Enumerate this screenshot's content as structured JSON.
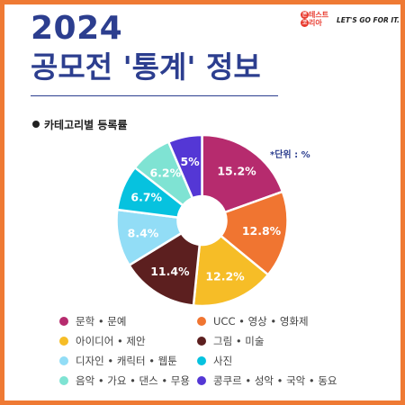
{
  "header": {
    "year": "2024",
    "title": "공모전 '통계' 정보",
    "logo_line1_a": "콘",
    "logo_line1_b": "테스트",
    "logo_line2_a": "코",
    "logo_line2_b": "리아",
    "slogan": "LET'S GO FOR IT."
  },
  "section_title": "카테고리별 등록률",
  "unit_note": "*단위 : %",
  "chart_data": {
    "type": "pie",
    "title": "카테고리별 등록률",
    "donut": true,
    "slices": [
      {
        "name": "문학 • 문예",
        "value": 15.2,
        "label": "15.2%",
        "color": "#b62b6e"
      },
      {
        "name": "UCC • 영상 • 영화제",
        "value": 12.8,
        "label": "12.8%",
        "color": "#f07531"
      },
      {
        "name": "아이디어 • 제안",
        "value": 12.2,
        "label": "12.2%",
        "color": "#f6bd27"
      },
      {
        "name": "그림 • 미술",
        "value": 11.4,
        "label": "11.4%",
        "color": "#5c1f1f"
      },
      {
        "name": "디자인 • 캐릭터 • 웹툰",
        "value": 8.4,
        "label": "8.4%",
        "color": "#92ddf6"
      },
      {
        "name": "사진",
        "value": 6.7,
        "label": "6.7%",
        "color": "#06c2df"
      },
      {
        "name": "음악 • 가요 • 댄스 • 무용",
        "value": 6.2,
        "label": "6.2%",
        "color": "#7fe3d3"
      },
      {
        "name": "콩쿠르 • 성악 • 국악 • 동요",
        "value": 5,
        "label": "5%",
        "color": "#5437d5"
      }
    ]
  },
  "legend": [
    "문학 • 문예",
    "UCC • 영상 • 영화제",
    "아이디어 • 제안",
    "그림 • 미술",
    "디자인 • 캐릭터 • 웹툰",
    "사진",
    "음악 • 가요 • 댄스 • 무용",
    "콩쿠르 • 성악 • 국악 • 동요"
  ],
  "colors": {
    "frame": "#ef7a34",
    "title": "#2c3e8f"
  }
}
